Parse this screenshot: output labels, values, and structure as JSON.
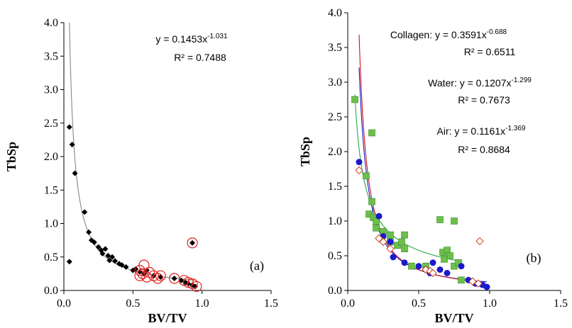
{
  "chart_data": [
    {
      "type": "scatter",
      "panel_label": "(a)",
      "x_label": "BV/TV",
      "y_label": "TbSp",
      "xlim": [
        0,
        1.5
      ],
      "ylim": [
        0,
        4
      ],
      "xticks": [
        {
          "value": 0,
          "label": "0.0"
        },
        0.5,
        {
          "value": 1,
          "label": "1.0"
        },
        1.5
      ],
      "yticks": [
        {
          "value": 0,
          "label": "0.0"
        },
        0.5,
        {
          "value": 1,
          "label": "1.0"
        },
        1.5,
        {
          "value": 2,
          "label": "2.0"
        },
        2.5,
        {
          "value": 3,
          "label": "3.0"
        },
        3.5,
        {
          "value": 4,
          "label": "4.0"
        }
      ],
      "series": [
        {
          "color": "#000000",
          "marker": "diamond",
          "x": [
            0.04,
            0.06,
            0.08,
            0.15,
            0.04,
            0.18,
            0.2,
            0.22,
            0.25,
            0.27,
            0.28,
            0.3,
            0.32,
            0.33,
            0.35,
            0.37,
            0.4,
            0.42,
            0.45,
            0.5,
            0.52,
            0.55,
            0.58,
            0.6,
            0.65,
            0.7,
            0.8,
            0.85,
            0.88,
            0.9,
            0.93,
            0.95,
            0.93
          ],
          "values": [
            2.44,
            2.18,
            1.75,
            1.17,
            0.43,
            0.87,
            0.75,
            0.72,
            0.65,
            0.6,
            0.55,
            0.62,
            0.52,
            0.45,
            0.5,
            0.44,
            0.4,
            0.38,
            0.35,
            0.3,
            0.32,
            0.28,
            0.25,
            0.3,
            0.22,
            0.2,
            0.18,
            0.15,
            0.12,
            0.1,
            0.08,
            0.06,
            0.71
          ],
          "fit": {
            "color": "#888888",
            "a": 0.1453,
            "b": -1.031,
            "label": "y = 0.1453x",
            "exponent_label": "-1.031",
            "r2_label": "R² = 0.7488"
          }
        },
        {
          "color": "#e02020",
          "marker": "open-circle",
          "x": [
            0.55,
            0.57,
            0.6,
            0.62,
            0.58,
            0.65,
            0.7,
            0.8,
            0.87,
            0.9,
            0.93,
            0.96,
            0.93,
            0.55,
            0.68
          ],
          "values": [
            0.3,
            0.25,
            0.2,
            0.27,
            0.38,
            0.22,
            0.22,
            0.18,
            0.15,
            0.12,
            0.1,
            0.06,
            0.71,
            0.22,
            0.18
          ]
        }
      ]
    },
    {
      "type": "scatter",
      "panel_label": "(b)",
      "x_label": "BV/TV",
      "y_label": "TbSp",
      "xlim": [
        0,
        1.5
      ],
      "ylim": [
        0,
        4
      ],
      "xticks": [
        {
          "value": 0,
          "label": "0.0"
        },
        0.5,
        {
          "value": 1,
          "label": "1.0"
        },
        1.5
      ],
      "yticks": [
        {
          "value": 0,
          "label": "0.0"
        },
        0.5,
        {
          "value": 1,
          "label": "1.0"
        },
        1.5,
        {
          "value": 2,
          "label": "2.0"
        },
        2.5,
        {
          "value": 3,
          "label": "3.0"
        },
        3.5,
        {
          "value": 4,
          "label": "4.0"
        }
      ],
      "series": [
        {
          "color": "#6cc04a",
          "marker": "square",
          "x": [
            0.05,
            0.17,
            0.13,
            0.17,
            0.15,
            0.18,
            0.2,
            0.2,
            0.25,
            0.3,
            0.3,
            0.35,
            0.38,
            0.4,
            0.4,
            0.45,
            0.55,
            0.65,
            0.75,
            0.67,
            0.7,
            0.72,
            0.75,
            0.78,
            0.8,
            0.68
          ],
          "values": [
            2.75,
            2.27,
            1.65,
            1.28,
            1.1,
            1.05,
            1.0,
            0.9,
            0.85,
            0.8,
            0.7,
            0.65,
            0.7,
            0.8,
            0.6,
            0.35,
            0.35,
            1.02,
            1.0,
            0.55,
            0.58,
            0.5,
            0.35,
            0.4,
            0.15,
            0.45
          ],
          "fit": {
            "color": "#2aa84a",
            "a": 0.3591,
            "b": -0.688,
            "label": "Collagen: y = 0.3591x",
            "exponent_label": "-0.688",
            "r2_label": "R² = 0.6511"
          }
        },
        {
          "color": "#1a1acc",
          "marker": "circle",
          "x": [
            0.08,
            0.22,
            0.25,
            0.3,
            0.32,
            0.4,
            0.5,
            0.55,
            0.58,
            0.6,
            0.65,
            0.7,
            0.8,
            0.85,
            0.9,
            0.95,
            0.98
          ],
          "values": [
            1.85,
            1.07,
            0.78,
            0.7,
            0.48,
            0.4,
            0.35,
            0.3,
            0.25,
            0.4,
            0.3,
            0.25,
            0.35,
            0.15,
            0.1,
            0.08,
            0.05
          ],
          "fit": {
            "color": "#1a1acc",
            "a": 0.1207,
            "b": -1.299,
            "label": "Water: y = 0.1207x",
            "exponent_label": "-1.299",
            "r2_label": "R² = 0.7673"
          }
        },
        {
          "color": "#d04020",
          "marker": "open-diamond",
          "x": [
            0.08,
            0.22,
            0.25,
            0.3,
            0.55,
            0.58,
            0.6,
            0.88,
            0.92,
            0.93
          ],
          "values": [
            1.73,
            0.75,
            0.7,
            0.6,
            0.3,
            0.28,
            0.25,
            0.13,
            0.1,
            0.71
          ],
          "fit": {
            "color": "#cc1020",
            "a": 0.1161,
            "b": -1.369,
            "label": "Air: y = 0.1161x",
            "exponent_label": "-1.369",
            "r2_label": "R² = 0.8684"
          }
        }
      ]
    }
  ]
}
